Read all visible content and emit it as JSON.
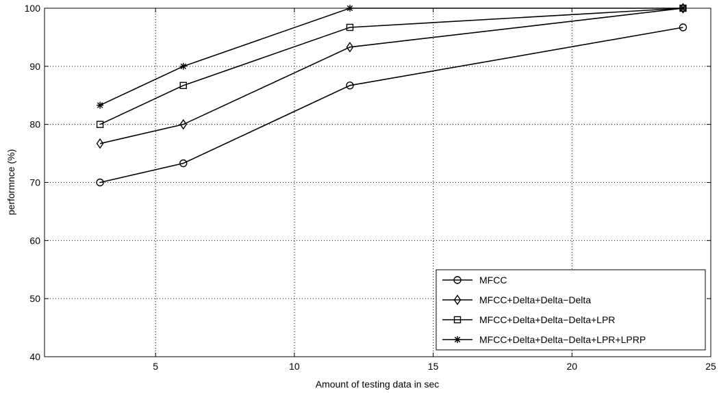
{
  "chart_data": {
    "type": "line",
    "xlabel": "Amount of testing data in sec",
    "ylabel": "performnce (%)",
    "xlim": [
      1,
      25
    ],
    "ylim": [
      40,
      100
    ],
    "xticks": [
      5,
      10,
      15,
      20,
      25
    ],
    "yticks": [
      40,
      50,
      60,
      70,
      80,
      90,
      100
    ],
    "grid": true,
    "legend_position": "bottom-right",
    "x": [
      3,
      6,
      12,
      24
    ],
    "series": [
      {
        "name": "MFCC",
        "marker": "circle",
        "values": [
          70,
          73.3,
          86.7,
          96.7
        ]
      },
      {
        "name": "MFCC+Delta+Delta−Delta",
        "marker": "diamond",
        "values": [
          76.7,
          80,
          93.3,
          100
        ]
      },
      {
        "name": "MFCC+Delta+Delta−Delta+LPR",
        "marker": "square",
        "values": [
          80,
          86.7,
          96.7,
          100
        ]
      },
      {
        "name": "MFCC+Delta+Delta−Delta+LPR+LPRP",
        "marker": "star",
        "values": [
          83.3,
          90,
          100,
          100
        ]
      }
    ]
  }
}
